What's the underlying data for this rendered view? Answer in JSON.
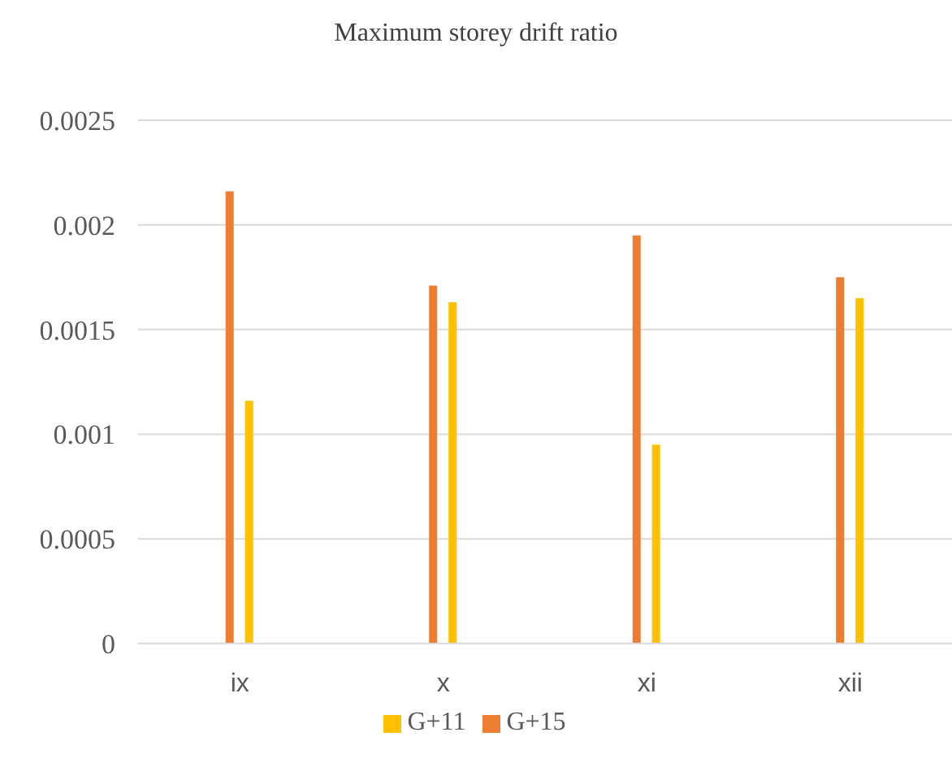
{
  "chart_data": {
    "type": "bar",
    "title": "Maximum storey drift ratio",
    "categories": [
      "ix",
      "x",
      "xi",
      "xii"
    ],
    "series": [
      {
        "name": "G+15",
        "color": "#ed7d31",
        "values": [
          0.00216,
          0.00171,
          0.00195,
          0.00175
        ]
      },
      {
        "name": "G+11",
        "color": "#ffc000",
        "values": [
          0.00116,
          0.00163,
          0.00095,
          0.00165
        ]
      }
    ],
    "ylim": [
      0,
      0.0025
    ],
    "yticks": [
      0,
      0.0005,
      0.001,
      0.0015,
      0.002,
      0.0025
    ],
    "grid": "y",
    "legend": "bottom"
  }
}
